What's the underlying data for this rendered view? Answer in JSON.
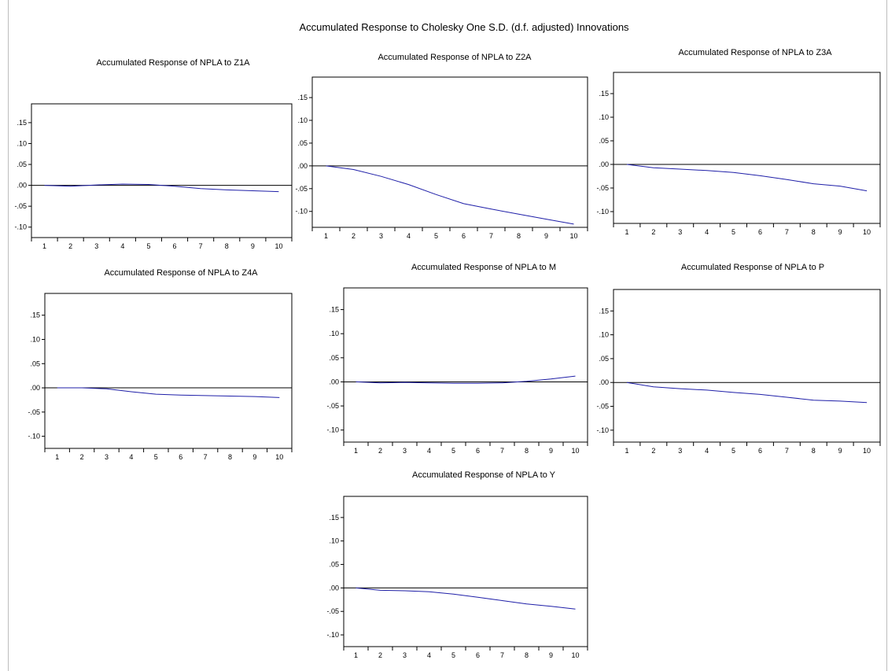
{
  "page_title": "Accumulated Response to Cholesky One S.D. (d.f. adjusted) Innovations",
  "colors": {
    "line": "#1f1fa8",
    "axis": "#000000",
    "zero_line": "#000000"
  },
  "chart_data": [
    {
      "type": "line",
      "title": "Accumulated Response of NPLA to Z1A",
      "x": [
        1,
        2,
        3,
        4,
        5,
        6,
        7,
        8,
        9,
        10
      ],
      "series": [
        {
          "values": [
            0.0,
            -0.002,
            0.001,
            0.003,
            0.002,
            -0.002,
            -0.008,
            -0.011,
            -0.013,
            -0.015
          ]
        }
      ],
      "ylim": [
        -0.125,
        0.195
      ],
      "yticks": [
        ".15",
        ".10",
        ".05",
        ".00",
        "-.05",
        "-.10"
      ],
      "xticks": [
        "1",
        "2",
        "3",
        "4",
        "5",
        "6",
        "7",
        "8",
        "9",
        "10"
      ]
    },
    {
      "type": "line",
      "title": "Accumulated Response of NPLA to Z2A",
      "x": [
        1,
        2,
        3,
        4,
        5,
        6,
        7,
        8,
        9,
        10
      ],
      "series": [
        {
          "values": [
            0.0,
            -0.008,
            -0.023,
            -0.041,
            -0.063,
            -0.083,
            -0.095,
            -0.106,
            -0.117,
            -0.128
          ]
        }
      ],
      "ylim": [
        -0.135,
        0.195
      ],
      "yticks": [
        ".15",
        ".10",
        ".05",
        ".00",
        "-.05",
        "-.10"
      ],
      "xticks": [
        "1",
        "2",
        "3",
        "4",
        "5",
        "6",
        "7",
        "8",
        "9",
        "10"
      ]
    },
    {
      "type": "line",
      "title": "Accumulated Response of NPLA to Z3A",
      "x": [
        1,
        2,
        3,
        4,
        5,
        6,
        7,
        8,
        9,
        10
      ],
      "series": [
        {
          "values": [
            0.0,
            -0.007,
            -0.01,
            -0.013,
            -0.017,
            -0.024,
            -0.032,
            -0.041,
            -0.046,
            -0.056
          ]
        }
      ],
      "ylim": [
        -0.125,
        0.195
      ],
      "yticks": [
        ".15",
        ".10",
        ".05",
        ".00",
        "-.05",
        "-.10"
      ],
      "xticks": [
        "1",
        "2",
        "3",
        "4",
        "5",
        "6",
        "7",
        "8",
        "9",
        "10"
      ]
    },
    {
      "type": "line",
      "title": "Accumulated Response of NPLA to Z4A",
      "x": [
        1,
        2,
        3,
        4,
        5,
        6,
        7,
        8,
        9,
        10
      ],
      "series": [
        {
          "values": [
            0.0,
            0.0,
            -0.002,
            -0.008,
            -0.013,
            -0.015,
            -0.016,
            -0.017,
            -0.018,
            -0.02
          ]
        }
      ],
      "ylim": [
        -0.125,
        0.195
      ],
      "yticks": [
        ".15",
        ".10",
        ".05",
        ".00",
        "-.05",
        "-.10"
      ],
      "xticks": [
        "1",
        "2",
        "3",
        "4",
        "5",
        "6",
        "7",
        "8",
        "9",
        "10"
      ]
    },
    {
      "type": "line",
      "title": "Accumulated Response of NPLA to M",
      "x": [
        1,
        2,
        3,
        4,
        5,
        6,
        7,
        8,
        9,
        10
      ],
      "series": [
        {
          "values": [
            0.0,
            -0.002,
            -0.001,
            -0.002,
            -0.003,
            -0.003,
            -0.002,
            0.001,
            0.006,
            0.012
          ]
        }
      ],
      "ylim": [
        -0.125,
        0.195
      ],
      "yticks": [
        ".15",
        ".10",
        ".05",
        ".00",
        "-.05",
        "-.10"
      ],
      "xticks": [
        "1",
        "2",
        "3",
        "4",
        "5",
        "6",
        "7",
        "8",
        "9",
        "10"
      ]
    },
    {
      "type": "line",
      "title": "Accumulated Response of NPLA to P",
      "x": [
        1,
        2,
        3,
        4,
        5,
        6,
        7,
        8,
        9,
        10
      ],
      "series": [
        {
          "values": [
            0.0,
            -0.009,
            -0.013,
            -0.016,
            -0.021,
            -0.025,
            -0.031,
            -0.037,
            -0.039,
            -0.042
          ]
        }
      ],
      "ylim": [
        -0.125,
        0.195
      ],
      "yticks": [
        ".15",
        ".10",
        ".05",
        ".00",
        "-.05",
        "-.10"
      ],
      "xticks": [
        "1",
        "2",
        "3",
        "4",
        "5",
        "6",
        "7",
        "8",
        "9",
        "10"
      ]
    },
    {
      "type": "line",
      "title": "Accumulated Response of NPLA to Y",
      "x": [
        1,
        2,
        3,
        4,
        5,
        6,
        7,
        8,
        9,
        10
      ],
      "series": [
        {
          "values": [
            0.0,
            -0.005,
            -0.006,
            -0.008,
            -0.013,
            -0.02,
            -0.027,
            -0.034,
            -0.039,
            -0.045
          ]
        }
      ],
      "ylim": [
        -0.125,
        0.195
      ],
      "yticks": [
        ".15",
        ".10",
        ".05",
        ".00",
        "-.05",
        "-.10"
      ],
      "xticks": [
        "1",
        "2",
        "3",
        "4",
        "5",
        "6",
        "7",
        "8",
        "9",
        "10"
      ]
    }
  ]
}
